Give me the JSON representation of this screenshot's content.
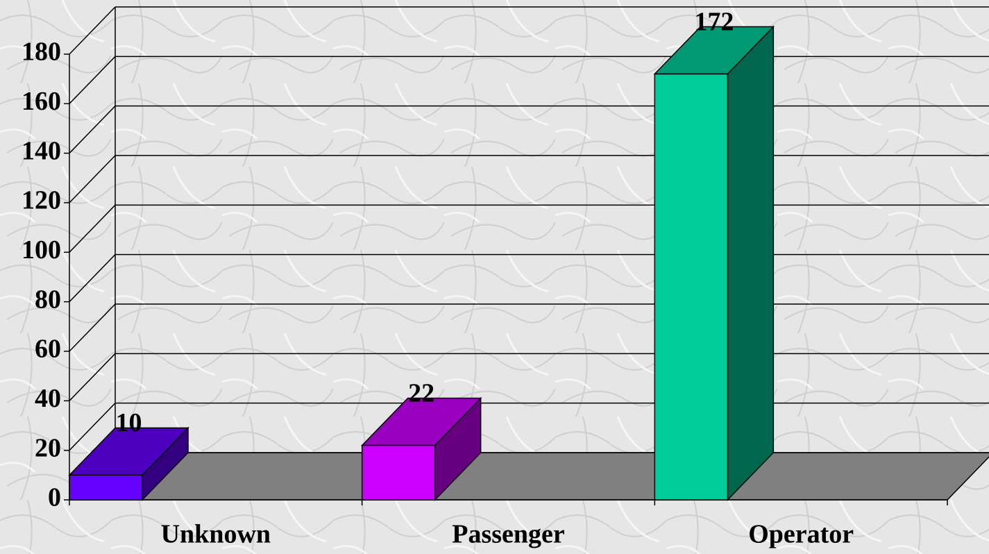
{
  "chart_data": {
    "type": "bar3d",
    "categories": [
      "Unknown",
      "Passenger",
      "Operator"
    ],
    "values": [
      10,
      22,
      172
    ],
    "colors": [
      "#6600ff",
      "#cc00ff",
      "#00cc99"
    ],
    "ylim": [
      0,
      180
    ],
    "yticks": [
      0,
      20,
      40,
      60,
      80,
      100,
      120,
      140,
      160,
      180
    ],
    "grid": true
  }
}
